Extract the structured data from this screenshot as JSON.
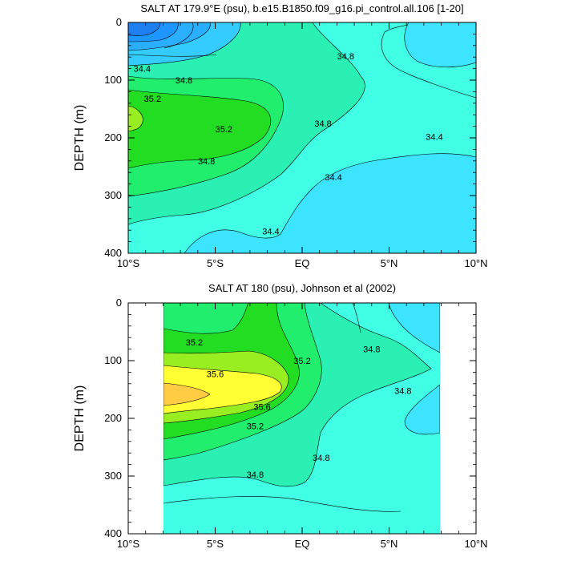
{
  "colors": {
    "levels_lt_34_0": "#1e90ff",
    "levels_34_0": "#2aa8ff",
    "levels_34_2": "#34c6ff",
    "levels_34_4": "#3cdcff",
    "levels_34_6": "#40ffe0",
    "levels_34_8": "#2af0b0",
    "levels_35_0": "#22ee66",
    "levels_35_2": "#22dd22",
    "levels_35_4": "#99ee22",
    "levels_35_6": "#ffff33",
    "levels_35_8": "#ffcc44"
  },
  "chart_data": [
    {
      "type": "contour",
      "title": "SALT AT 179.9°E (psu), b.e15.B1850.f09_g16.pi_control.all.106 [1-20]",
      "xlabel": "",
      "ylabel": "DEPTH (m)",
      "x_ticks": [
        "10°S",
        "5°S",
        "EQ",
        "5°N",
        "10°N"
      ],
      "y_ticks": [
        "0",
        "100",
        "200",
        "300",
        "400"
      ],
      "xlim": [
        -10,
        10
      ],
      "ylim": [
        400,
        0
      ],
      "contour_labels": [
        {
          "text": "34.4",
          "lat": -9.2,
          "depth": 80
        },
        {
          "text": "34.8",
          "lat": -6.8,
          "depth": 100
        },
        {
          "text": "35.2",
          "lat": -8.6,
          "depth": 132
        },
        {
          "text": "35.2",
          "lat": -4.5,
          "depth": 185
        },
        {
          "text": "34.8",
          "lat": -5.5,
          "depth": 240
        },
        {
          "text": "34.8",
          "lat": 2.5,
          "depth": 58
        },
        {
          "text": "34.8",
          "lat": 1.2,
          "depth": 175
        },
        {
          "text": "34.4",
          "lat": 7.6,
          "depth": 198
        },
        {
          "text": "34.4",
          "lat": 1.8,
          "depth": 268
        },
        {
          "text": "34.4",
          "lat": -1.8,
          "depth": 362
        }
      ]
    },
    {
      "type": "contour",
      "title": "SALT AT 180 (psu), Johnson et al (2002)",
      "xlabel": "",
      "ylabel": "DEPTH (m)",
      "x_ticks": [
        "10°S",
        "5°S",
        "EQ",
        "5°N",
        "10°N"
      ],
      "y_ticks": [
        "0",
        "100",
        "200",
        "300",
        "400"
      ],
      "xlim": [
        -10,
        10
      ],
      "ylim": [
        400,
        0
      ],
      "data_lat_range": [
        -8,
        8
      ],
      "contour_labels": [
        {
          "text": "35.2",
          "lat": -6.2,
          "depth": 68
        },
        {
          "text": "35.6",
          "lat": -5.0,
          "depth": 123
        },
        {
          "text": "35.6",
          "lat": -2.3,
          "depth": 180
        },
        {
          "text": "35.2",
          "lat": -2.7,
          "depth": 213
        },
        {
          "text": "35.2",
          "lat": 0.0,
          "depth": 100
        },
        {
          "text": "34.8",
          "lat": 4.0,
          "depth": 80
        },
        {
          "text": "34.8",
          "lat": 5.8,
          "depth": 152
        },
        {
          "text": "34.8",
          "lat": 1.1,
          "depth": 268
        },
        {
          "text": "34.8",
          "lat": -2.7,
          "depth": 297
        }
      ]
    }
  ]
}
